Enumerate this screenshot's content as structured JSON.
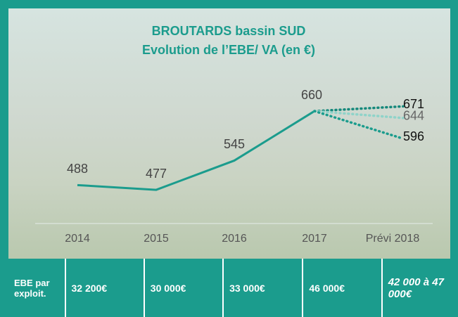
{
  "chart_data": {
    "type": "line",
    "title": "BROUTARDS bassin SUD",
    "subtitle": "Evolution de l’EBE/ VA (en €)",
    "categories": [
      "2014",
      "2015",
      "2016",
      "2017",
      "Prévi 2018"
    ],
    "series": [
      {
        "color": "#1b9c8d",
        "values": [
          488,
          477,
          545,
          660,
          null
        ]
      },
      {
        "color": "#15887b",
        "values": [
          null,
          null,
          null,
          null,
          671
        ]
      },
      {
        "color": "#8fd3c9",
        "values": [
          null,
          null,
          null,
          null,
          644
        ]
      },
      {
        "color": "#1b9c8d",
        "values": [
          null,
          null,
          null,
          null,
          596
        ]
      }
    ]
  },
  "table": {
    "rows": [
      [
        "EBE par exploit.",
        "32 200€",
        "30 000€",
        "33 000€",
        "46 000€",
        "42  000 à 47 000€"
      ]
    ]
  }
}
